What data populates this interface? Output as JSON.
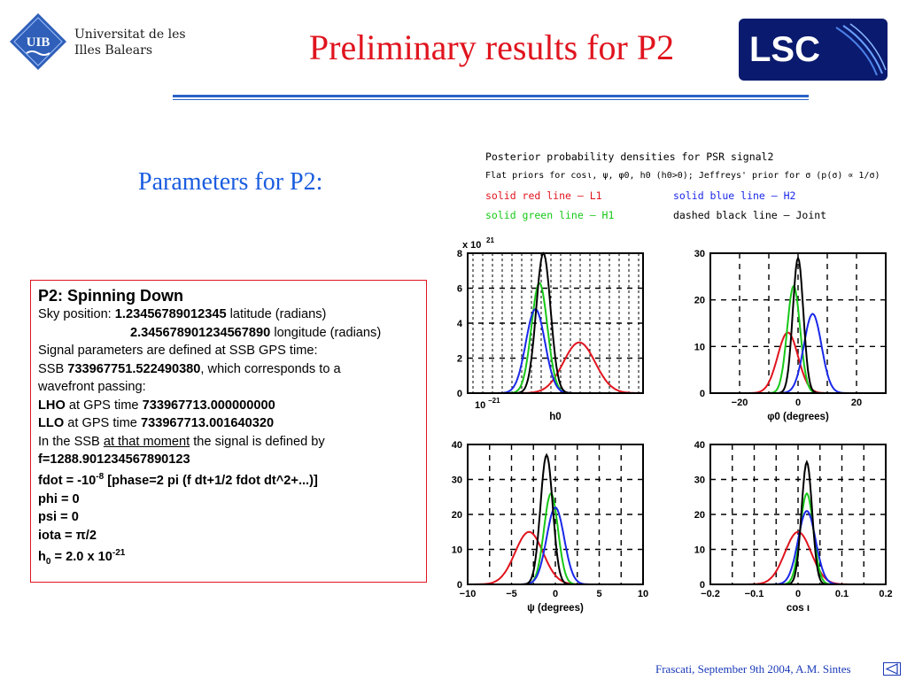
{
  "header": {
    "university_line1": "Universitat de les",
    "university_line2": "Illes Balears",
    "uib_logo_text": "UIB",
    "title": "Preliminary results for P2",
    "lsc_logo_text": "LSC"
  },
  "section_title": "Parameters for P2:",
  "params": {
    "heading": "P2: Spinning Down",
    "sky_label": "Sky position: ",
    "latitude_value": "1.23456789012345",
    "latitude_unit": " latitude (radians)",
    "longitude_value": "2.345678901234567890",
    "longitude_unit": " longitude (radians)",
    "ssb_line": "Signal parameters are defined at SSB GPS time:",
    "ssb_prefix": "SSB ",
    "ssb_value": "733967751.522490380",
    "ssb_suffix": ", which corresponds to a",
    "wavefront": "wavefront passing:",
    "lho_label": "LHO",
    "lho_mid": " at GPS time ",
    "lho_value": "733967713.000000000",
    "llo_label": "LLO",
    "llo_mid": " at GPS time ",
    "llo_value": "733967713.001640320",
    "ssb_def_pre": "In the SSB ",
    "ssb_def_underline": "at that moment",
    "ssb_def_post": " the signal is defined by",
    "f_line": "f=1288.901234567890123",
    "fdot_pre": "fdot = -10",
    "fdot_exp": "-8",
    "fdot_post": "  [phase=2 pi (f dt+1/2 fdot dt^2+...)]",
    "phi": "phi = 0",
    "psi": "psi = 0",
    "iota_pre": "iota = ",
    "iota_pi": "π",
    "iota_post": "/2",
    "h0_pre": "h",
    "h0_sub": "0",
    "h0_mid": " = 2.0 x 10",
    "h0_exp": "-21"
  },
  "plot_header": {
    "line1": "Posterior probability densities for PSR signal2",
    "line2": "Flat priors for cosι, ψ, φ0, h0 (h0>0); Jeffreys' prior for σ (p(σ) ∝ 1/σ)",
    "red": "solid red line – L1",
    "blue": "solid blue line – H2",
    "green": "solid green line – H1",
    "black": "dashed black line – Joint"
  },
  "chart_data": [
    {
      "type": "line",
      "xlabel": "h0",
      "x_tick_label": "10^-21",
      "y_multiplier": "x 10^21",
      "ylim": [
        0,
        8
      ],
      "y_ticks": [
        0,
        2,
        4,
        6,
        8
      ],
      "grid": true,
      "colors": {
        "L1": "#e0141e",
        "H1": "#18c818",
        "H2": "#1a28e8",
        "Joint": "#000000"
      },
      "series": [
        {
          "curve": "L1",
          "peak_x": 0.39,
          "peak_y": 2.9,
          "width": 0.02
        },
        {
          "curve": "H1",
          "peak_x": 0.34,
          "peak_y": 6.3,
          "width": 0.01
        },
        {
          "curve": "H2",
          "peak_x": 0.335,
          "peak_y": 4.8,
          "width": 0.012
        },
        {
          "curve": "Joint",
          "peak_x": 0.345,
          "peak_y": 8.0,
          "width": 0.009
        }
      ]
    },
    {
      "type": "line",
      "xlabel": "φ0 (degrees)",
      "xlim": [
        -30,
        30
      ],
      "x_ticks": [
        -20,
        0,
        20
      ],
      "ylim": [
        0,
        30
      ],
      "y_ticks": [
        0,
        10,
        20,
        30
      ],
      "grid": true,
      "series": [
        {
          "curve": "L1",
          "peak_x": -3.5,
          "peak_y": 13,
          "width": 3.5
        },
        {
          "curve": "H1",
          "peak_x": -1.5,
          "peak_y": 23,
          "width": 2.2
        },
        {
          "curve": "H2",
          "peak_x": 5,
          "peak_y": 17,
          "width": 3
        },
        {
          "curve": "Joint",
          "peak_x": 0,
          "peak_y": 29,
          "width": 1.8
        }
      ]
    },
    {
      "type": "line",
      "xlabel": "ψ (degrees)",
      "xlim": [
        -10,
        10
      ],
      "x_ticks": [
        -10,
        -5,
        0,
        5,
        10
      ],
      "ylim": [
        0,
        40
      ],
      "y_ticks": [
        0,
        10,
        20,
        30,
        40
      ],
      "grid": true,
      "series": [
        {
          "curve": "L1",
          "peak_x": -3.0,
          "peak_y": 15,
          "width": 1.6
        },
        {
          "curve": "H1",
          "peak_x": -0.5,
          "peak_y": 26,
          "width": 0.8
        },
        {
          "curve": "H2",
          "peak_x": 0,
          "peak_y": 22,
          "width": 1.0
        },
        {
          "curve": "Joint",
          "peak_x": -1.0,
          "peak_y": 37,
          "width": 0.7
        }
      ]
    },
    {
      "type": "line",
      "xlabel": "cos ι",
      "xlim": [
        -0.2,
        0.2
      ],
      "x_ticks": [
        -0.2,
        -0.1,
        0,
        0.1,
        0.2
      ],
      "ylim": [
        0,
        40
      ],
      "y_ticks": [
        0,
        10,
        20,
        30,
        40
      ],
      "grid": true,
      "series": [
        {
          "curve": "L1",
          "peak_x": 0.0,
          "peak_y": 15,
          "width": 0.03
        },
        {
          "curve": "H1",
          "peak_x": 0.02,
          "peak_y": 26,
          "width": 0.015
        },
        {
          "curve": "H2",
          "peak_x": 0.02,
          "peak_y": 21,
          "width": 0.02
        },
        {
          "curve": "Joint",
          "peak_x": 0.02,
          "peak_y": 35,
          "width": 0.012
        }
      ]
    }
  ],
  "footer": "Frascati, September  9th 2004, A.M. Sintes",
  "nav_icon": "back-triangle-icon"
}
